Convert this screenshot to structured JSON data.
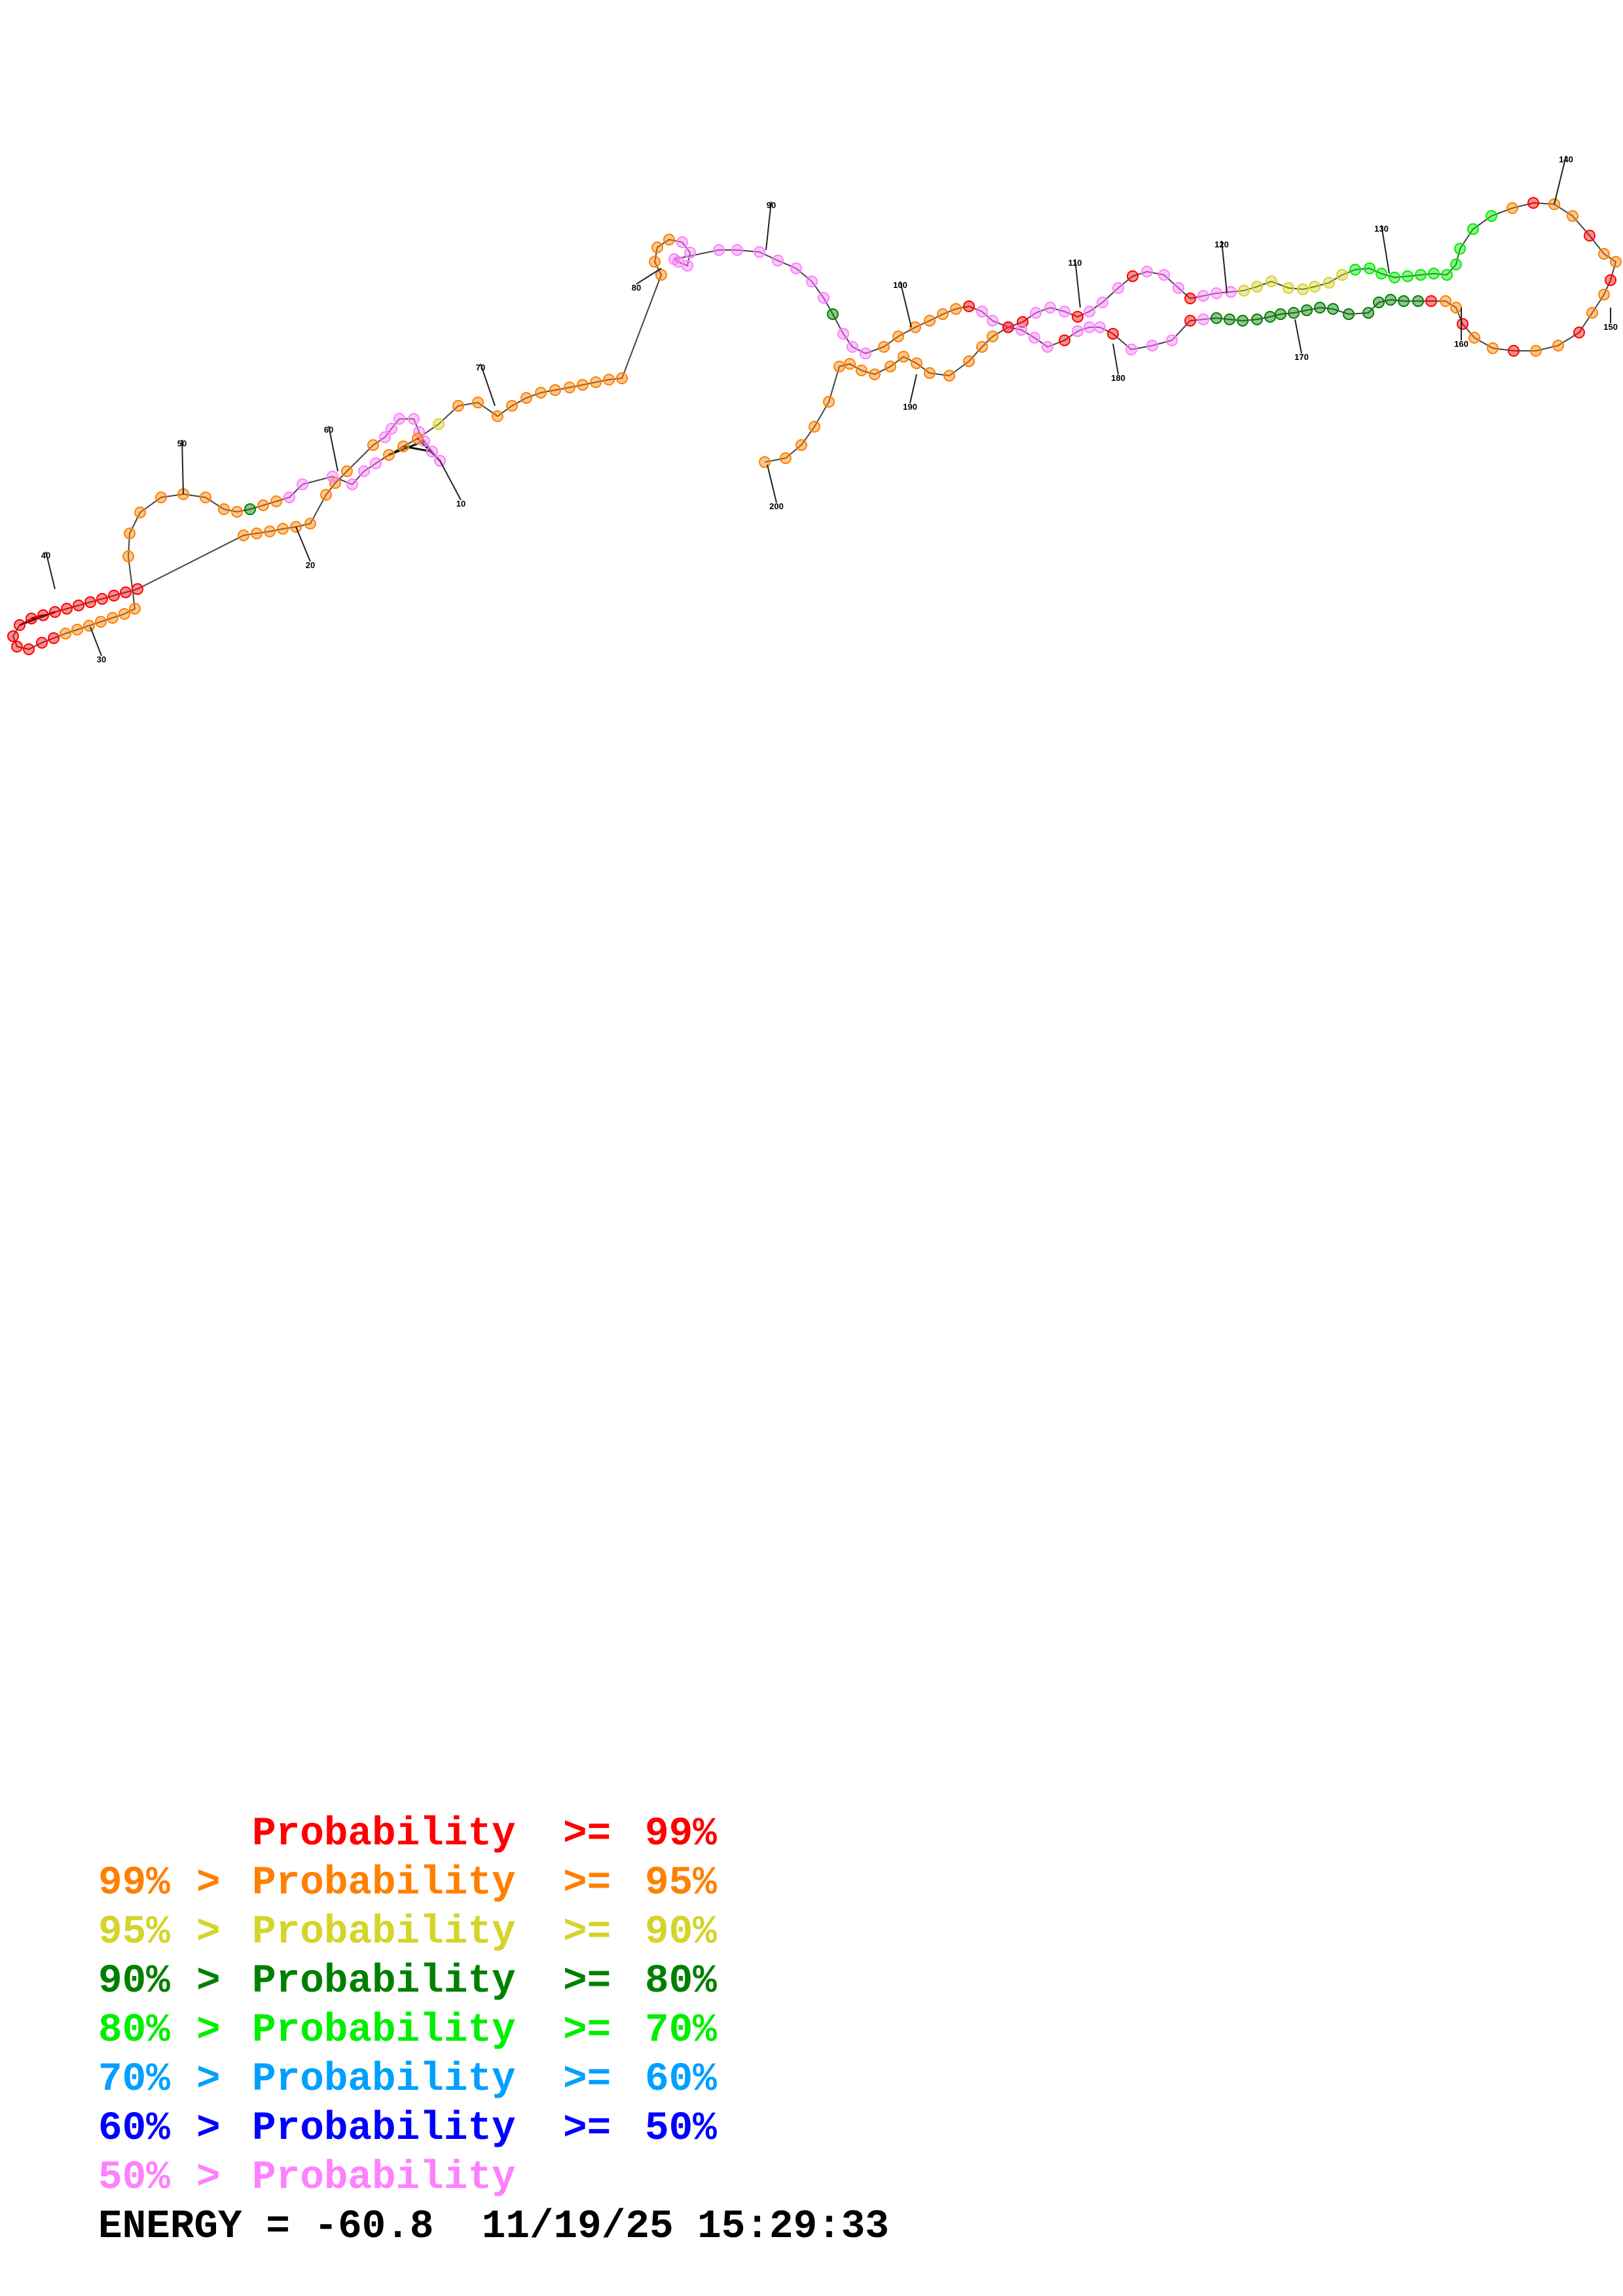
{
  "legend": [
    {
      "low": "",
      "op": "",
      "word": "Probability",
      "op2": ">=",
      "high": "99%",
      "color": "#ff0000"
    },
    {
      "low": "99%",
      "op": ">",
      "word": "Probability",
      "op2": ">=",
      "high": "95%",
      "color": "#ff8000"
    },
    {
      "low": "95%",
      "op": ">",
      "word": "Probability",
      "op2": ">=",
      "high": "90%",
      "color": "#d4d42a"
    },
    {
      "low": "90%",
      "op": ">",
      "word": "Probability",
      "op2": ">=",
      "high": "80%",
      "color": "#008000"
    },
    {
      "low": "80%",
      "op": ">",
      "word": "Probability",
      "op2": ">=",
      "high": "70%",
      "color": "#00ee00"
    },
    {
      "low": "70%",
      "op": ">",
      "word": "Probability",
      "op2": ">=",
      "high": "60%",
      "color": "#00a0ff"
    },
    {
      "low": "60%",
      "op": ">",
      "word": "Probability",
      "op2": ">=",
      "high": "50%",
      "color": "#0000ff"
    },
    {
      "low": "50%",
      "op": ">",
      "word": "Probability",
      "op2": "",
      "high": "",
      "color": "#ff80ff"
    }
  ],
  "energy": {
    "label": "ENERGY = ",
    "value": "-60.8",
    "timestamp": "11/19/25 15:29:33"
  },
  "diagram": {
    "position_labels": [
      "10",
      "20",
      "30",
      "40",
      "50",
      "60",
      "70",
      "80",
      "90",
      "100",
      "110",
      "120",
      "130",
      "140",
      "150",
      "160",
      "170",
      "180",
      "190",
      "200"
    ],
    "colors": {
      "red": "#ff0000",
      "orange": "#ff8000",
      "yellow": "#d4d42a",
      "dkgreen": "#008000",
      "green": "#00ee00",
      "blue": "#00a0ff",
      "pink": "#ff80ff"
    }
  }
}
